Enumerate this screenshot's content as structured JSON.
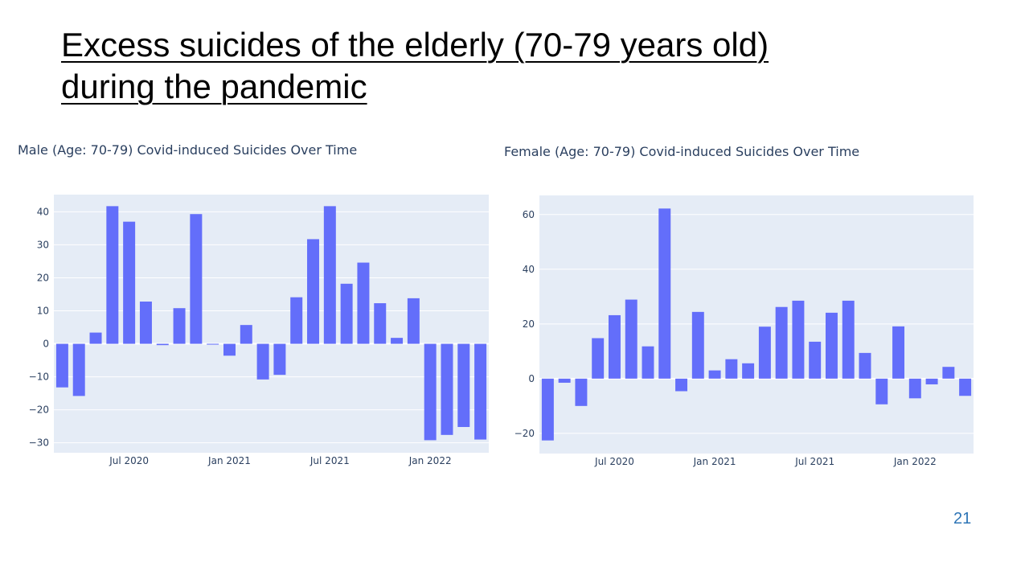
{
  "slide": {
    "title_line1": "Excess suicides of the elderly (70-79 years old)",
    "title_line2": "during the pandemic",
    "page_number": "21"
  },
  "colors": {
    "bar": "#636efa",
    "plot_bg": "#e5ecf6",
    "grid": "#ffffff",
    "text": "#2a3f5f"
  },
  "chart_data": [
    {
      "type": "bar",
      "title": "Male (Age: 70-79) Covid-induced Suicides Over Time",
      "x": [
        "2020-03",
        "2020-04",
        "2020-05",
        "2020-06",
        "2020-07",
        "2020-08",
        "2020-09",
        "2020-10",
        "2020-11",
        "2020-12",
        "2021-01",
        "2021-02",
        "2021-03",
        "2021-04",
        "2021-05",
        "2021-06",
        "2021-07",
        "2021-08",
        "2021-09",
        "2021-10",
        "2021-11",
        "2021-12",
        "2022-01",
        "2022-02",
        "2022-03",
        "2022-04"
      ],
      "values": [
        -13.2,
        -15.8,
        3.4,
        41.7,
        37.0,
        12.8,
        -0.4,
        10.8,
        39.3,
        -0.2,
        -3.6,
        5.7,
        -10.8,
        -9.4,
        14.1,
        31.7,
        41.7,
        18.2,
        24.6,
        12.3,
        1.8,
        13.8,
        -29.2,
        -27.6,
        -25.2,
        -29.0
      ],
      "yticks": [
        -30,
        -20,
        -10,
        0,
        10,
        20,
        30,
        40
      ],
      "ytick_labels": [
        "−30",
        "−20",
        "−10",
        "0",
        "10",
        "20",
        "30",
        "40"
      ],
      "ylim": [
        -33.0,
        45.2
      ],
      "xticks": [
        "2020-07",
        "2021-01",
        "2021-07",
        "2022-01"
      ],
      "xtick_labels": [
        "Jul 2020",
        "Jan 2021",
        "Jul 2021",
        "Jan 2022"
      ],
      "grid": true,
      "xlabel": "",
      "ylabel": ""
    },
    {
      "type": "bar",
      "title": "Female (Age: 70-79) Covid-induced Suicides Over Time",
      "x": [
        "2020-03",
        "2020-04",
        "2020-05",
        "2020-06",
        "2020-07",
        "2020-08",
        "2020-09",
        "2020-10",
        "2020-11",
        "2020-12",
        "2021-01",
        "2021-02",
        "2021-03",
        "2021-04",
        "2021-05",
        "2021-06",
        "2021-07",
        "2021-08",
        "2021-09",
        "2021-10",
        "2021-11",
        "2021-12",
        "2022-01",
        "2022-02",
        "2022-03",
        "2022-04"
      ],
      "values": [
        -22.6,
        -1.5,
        -10.0,
        14.8,
        23.2,
        28.9,
        11.8,
        62.2,
        -4.6,
        24.4,
        3.0,
        7.1,
        5.6,
        19.0,
        26.2,
        28.5,
        13.5,
        24.1,
        28.5,
        9.4,
        -9.4,
        19.1,
        -7.2,
        -2.1,
        4.3,
        -6.3
      ],
      "yticks": [
        -20,
        0,
        20,
        40,
        60
      ],
      "ytick_labels": [
        "−20",
        "0",
        "20",
        "40",
        "60"
      ],
      "ylim": [
        -27.4,
        67.0
      ],
      "xticks": [
        "2020-07",
        "2021-01",
        "2021-07",
        "2022-01"
      ],
      "xtick_labels": [
        "Jul 2020",
        "Jan 2021",
        "Jul 2021",
        "Jan 2022"
      ],
      "grid": true,
      "xlabel": "",
      "ylabel": ""
    }
  ]
}
